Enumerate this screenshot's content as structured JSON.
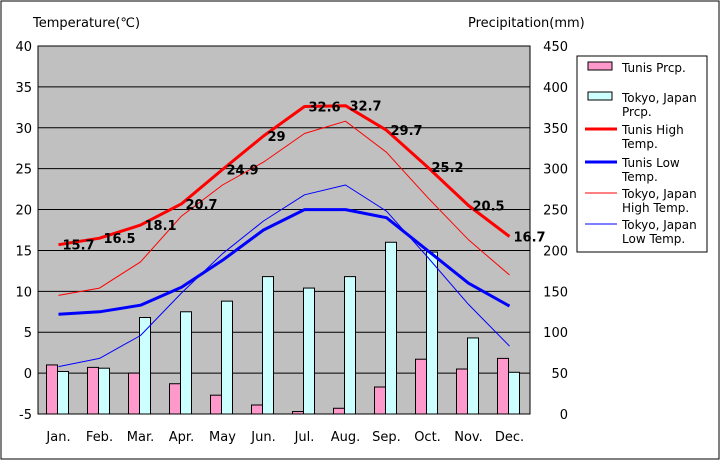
{
  "chart_data": {
    "type": "bar",
    "categories": [
      "Jan.",
      "Feb.",
      "Mar.",
      "Apr.",
      "May",
      "Jun.",
      "Jul.",
      "Aug.",
      "Sep.",
      "Oct.",
      "Nov.",
      "Dec."
    ],
    "left_axis": {
      "title": "Temperature(℃)",
      "min": -5,
      "max": 40,
      "ticks": [
        -5,
        0,
        5,
        10,
        15,
        20,
        25,
        30,
        35,
        40
      ]
    },
    "right_axis": {
      "title": "Precipitation(mm)",
      "min": 0,
      "max": 450,
      "ticks": [
        0,
        50,
        100,
        150,
        200,
        250,
        300,
        350,
        400,
        450
      ]
    },
    "grid": true,
    "legend_position": "right",
    "series": [
      {
        "name": "Tunis Prcp.",
        "kind": "bar",
        "axis": "right",
        "color": "#ff99cc",
        "values": [
          60,
          57,
          50,
          37,
          23,
          11,
          3,
          7,
          33,
          67,
          55,
          68
        ]
      },
      {
        "name": "Tokyo, Japan Prcp.",
        "kind": "bar",
        "axis": "right",
        "color": "#ccffff",
        "values": [
          52,
          56,
          118,
          125,
          138,
          168,
          154,
          168,
          210,
          198,
          93,
          51
        ]
      },
      {
        "name": "Tunis High Temp.",
        "kind": "line",
        "axis": "left",
        "color": "#ff0000",
        "width": 3,
        "values": [
          15.7,
          16.5,
          18.1,
          20.7,
          24.9,
          29,
          32.6,
          32.7,
          29.7,
          25.2,
          20.5,
          16.7
        ],
        "labels": [
          "15.7",
          "16.5",
          "18.1",
          "20.7",
          "24.9",
          "29",
          "32.6",
          "32.7",
          "29.7",
          "25.2",
          "20.5",
          "16.7"
        ]
      },
      {
        "name": "Tunis Low Temp.",
        "kind": "line",
        "axis": "left",
        "color": "#0000ff",
        "width": 3,
        "values": [
          7.2,
          7.5,
          8.3,
          10.5,
          13.8,
          17.5,
          20,
          20,
          19,
          15,
          11,
          8.2
        ]
      },
      {
        "name": "Tokyo, Japan High Temp.",
        "kind": "line",
        "axis": "left",
        "color": "#ff0000",
        "width": 1,
        "values": [
          9.5,
          10.4,
          13.6,
          19.2,
          23,
          25.8,
          29.3,
          30.8,
          27,
          21.5,
          16.3,
          12
        ]
      },
      {
        "name": "Tokyo, Japan Low Temp.",
        "kind": "line",
        "axis": "left",
        "color": "#0000ff",
        "width": 1,
        "values": [
          0.8,
          1.8,
          4.6,
          9.8,
          14.6,
          18.6,
          21.8,
          23,
          19.8,
          14.2,
          8.4,
          3.3
        ]
      }
    ],
    "legend": [
      "Tunis Prcp.",
      "Tokyo, Japan Prcp.",
      "Tunis High Temp.",
      "Tunis Low Temp.",
      "Tokyo, Japan High Temp.",
      "Tokyo, Japan Low Temp."
    ]
  }
}
